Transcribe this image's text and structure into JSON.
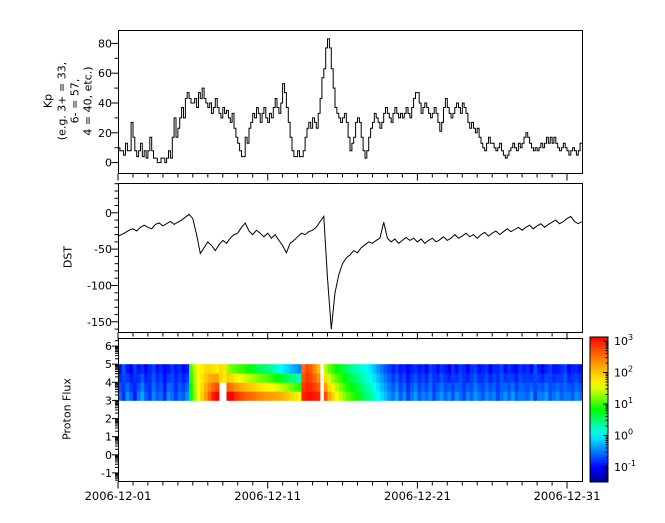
{
  "figure": {
    "background": "#ffffff",
    "border_color": "#000000",
    "line_color": "#000000"
  },
  "x_axis": {
    "tick_labels": [
      {
        "day": 0,
        "label": "2006-12-01"
      },
      {
        "day": 10,
        "label": "2006-12-11"
      },
      {
        "day": 20,
        "label": "2006-12-21"
      },
      {
        "day": 30,
        "label": "2006-12-31"
      }
    ],
    "minor_day_step": 1,
    "span_days": 31
  },
  "colorbar": {
    "base": "10",
    "tick_exponents": [
      3,
      2,
      1,
      0,
      -1
    ],
    "log10_domain": [
      -1.48,
      3.13
    ],
    "colormap_stops": [
      {
        "t": 0.0,
        "color": "#000090"
      },
      {
        "t": 0.1,
        "color": "#0000ff"
      },
      {
        "t": 0.33,
        "color": "#00ffff"
      },
      {
        "t": 0.5,
        "color": "#00ff00"
      },
      {
        "t": 0.67,
        "color": "#ffff00"
      },
      {
        "t": 0.85,
        "color": "#ff8000"
      },
      {
        "t": 1.0,
        "color": "#ff0000"
      }
    ]
  },
  "chart_data": [
    {
      "type": "line",
      "style": "step",
      "ylabel": "Kp (e.g. 3+ = 33, 6- = 57, 4 = 40, etc.)",
      "ylabel_lines": [
        "Kp",
        "(e.g. 3+ = 33,",
        "6- = 57,",
        "4 = 40, etc.)"
      ],
      "x_start": "2006-12-01",
      "interval_hours": 3,
      "yticks": [
        80,
        60,
        40,
        20,
        0
      ],
      "ytick_minor_step": 10,
      "ylim": [
        -7,
        89
      ],
      "values": [
        10,
        8,
        8,
        5,
        13,
        8,
        8,
        27,
        17,
        8,
        4,
        8,
        13,
        4,
        8,
        3,
        8,
        17,
        8,
        3,
        3,
        0,
        0,
        3,
        3,
        0,
        3,
        8,
        3,
        17,
        30,
        17,
        23,
        30,
        37,
        30,
        43,
        47,
        43,
        40,
        40,
        43,
        37,
        47,
        43,
        50,
        43,
        40,
        37,
        40,
        33,
        37,
        43,
        37,
        33,
        30,
        37,
        33,
        35,
        30,
        27,
        33,
        23,
        17,
        13,
        8,
        4,
        4,
        17,
        13,
        23,
        27,
        33,
        30,
        37,
        33,
        27,
        33,
        37,
        30,
        27,
        33,
        30,
        37,
        43,
        37,
        33,
        40,
        53,
        47,
        37,
        27,
        17,
        8,
        4,
        4,
        8,
        4,
        4,
        8,
        17,
        23,
        27,
        23,
        30,
        27,
        23,
        33,
        43,
        57,
        63,
        77,
        83,
        77,
        63,
        50,
        37,
        33,
        30,
        27,
        30,
        33,
        27,
        17,
        8,
        13,
        17,
        27,
        30,
        27,
        17,
        8,
        3,
        8,
        17,
        23,
        27,
        33,
        30,
        27,
        23,
        27,
        33,
        37,
        33,
        30,
        27,
        33,
        37,
        33,
        30,
        33,
        30,
        33,
        37,
        33,
        30,
        37,
        43,
        47,
        47,
        40,
        33,
        37,
        40,
        37,
        33,
        30,
        33,
        37,
        33,
        27,
        21,
        27,
        37,
        43,
        37,
        33,
        30,
        33,
        37,
        40,
        37,
        33,
        40,
        37,
        33,
        27,
        23,
        27,
        23,
        20,
        23,
        17,
        13,
        10,
        8,
        13,
        17,
        13,
        13,
        10,
        8,
        10,
        13,
        8,
        5,
        3,
        5,
        8,
        10,
        13,
        10,
        8,
        13,
        10,
        13,
        17,
        20,
        17,
        13,
        10,
        8,
        10,
        8,
        10,
        13,
        10,
        13,
        17,
        13,
        17,
        13,
        17,
        13,
        10,
        8,
        10,
        13,
        10,
        8,
        5,
        8,
        10,
        8,
        5,
        8,
        13
      ]
    },
    {
      "type": "line",
      "style": "line",
      "ylabel": "DST",
      "ylabel_lines": [
        "DST"
      ],
      "x_start": "2006-12-01",
      "interval_hours": 6,
      "yticks": [
        0,
        -50,
        -100,
        -150
      ],
      "ytick_minor_step": 10,
      "ylim": [
        -164,
        41
      ],
      "values": [
        -32,
        -30,
        -27,
        -24,
        -22,
        -25,
        -20,
        -17,
        -20,
        -22,
        -16,
        -14,
        -18,
        -15,
        -12,
        -16,
        -13,
        -10,
        -6,
        -2,
        -8,
        -30,
        -56,
        -48,
        -40,
        -45,
        -52,
        -44,
        -38,
        -42,
        -35,
        -30,
        -28,
        -20,
        -14,
        -25,
        -30,
        -24,
        -28,
        -33,
        -28,
        -35,
        -30,
        -38,
        -45,
        -55,
        -42,
        -38,
        -33,
        -28,
        -30,
        -26,
        -24,
        -20,
        -12,
        -5,
        -90,
        -160,
        -110,
        -85,
        -70,
        -62,
        -58,
        -52,
        -55,
        -48,
        -44,
        -40,
        -42,
        -38,
        -35,
        -13,
        -35,
        -40,
        -36,
        -42,
        -38,
        -34,
        -38,
        -35,
        -40,
        -36,
        -42,
        -38,
        -35,
        -40,
        -37,
        -33,
        -38,
        -35,
        -30,
        -35,
        -32,
        -28,
        -33,
        -30,
        -35,
        -30,
        -27,
        -32,
        -28,
        -25,
        -30,
        -26,
        -22,
        -26,
        -23,
        -20,
        -24,
        -20,
        -17,
        -22,
        -18,
        -15,
        -20,
        -16,
        -13,
        -10,
        -15,
        -12,
        -8,
        -5,
        -12,
        -15,
        -12
      ]
    },
    {
      "type": "heatmap",
      "ylabel": "Proton Flux",
      "ylabel_lines": [
        "Proton Flux"
      ],
      "x_start": "2006-12-01",
      "interval_hours": 6,
      "yticks": [
        6,
        5,
        4,
        3,
        2,
        1,
        0,
        -1
      ],
      "ylim": [
        -1.45,
        6.45
      ],
      "y_scale": "log-exponent",
      "band_y_range": [
        3,
        5
      ],
      "missing_value": null,
      "color_scale": {
        "type": "log",
        "min_exp": -1,
        "max_exp": 3,
        "colormap": "jet"
      },
      "bands": [
        {
          "y_range": [
            4,
            5
          ],
          "log10_flux": [
            -0.9,
            -0.7,
            -0.85,
            -1.0,
            -0.8,
            -0.9,
            -0.75,
            -0.95,
            -0.85,
            -0.7,
            -0.9,
            -0.8,
            -1.0,
            -0.85,
            -0.75,
            -0.9,
            -0.8,
            -0.95,
            -0.85,
            1.0,
            1.4,
            1.6,
            1.75,
            1.9,
            2.0,
            2.0,
            1.95,
            1.85,
            1.75,
            1.6,
            1.5,
            1.4,
            1.3,
            1.25,
            1.15,
            1.05,
            1.0,
            0.9,
            0.85,
            0.8,
            0.7,
            0.6,
            0.5,
            0.4,
            0.3,
            0.2,
            0.1,
            0.0,
            -0.1,
            2.6,
            2.8,
            2.7,
            2.5,
            2.2,
            null,
            1.6,
            1.3,
            1.1,
            0.95,
            0.85,
            0.7,
            0.6,
            0.5,
            0.4,
            0.3,
            0.2,
            0.1,
            0.0,
            -0.15,
            -0.3,
            -0.45,
            -0.6,
            -0.7,
            -0.85,
            -0.7,
            -0.9,
            -0.8,
            -1.0,
            -0.85,
            -0.75,
            -0.9,
            -0.8,
            -0.95,
            -0.7,
            -0.85,
            -0.9,
            -0.75,
            -0.85,
            -1.0,
            -0.8,
            -0.9,
            -0.75,
            -0.85,
            -0.95,
            -0.8,
            -0.7,
            -0.9,
            -0.85,
            -0.75,
            -0.95,
            -0.8,
            -0.85,
            -0.7,
            -0.9,
            -0.8,
            -0.85,
            -0.95,
            -0.75,
            -0.85,
            -0.8,
            -0.9,
            -0.7,
            -0.85,
            -0.95,
            -0.8,
            -0.75,
            -0.9,
            -0.85,
            -0.8,
            -0.7,
            -0.95,
            -0.85,
            -0.8,
            -0.9
          ]
        },
        {
          "y_range": [
            3,
            4
          ],
          "log10_flux": [
            -0.6,
            -0.8,
            -0.5,
            -0.7,
            -0.9,
            -0.6,
            -0.4,
            -0.7,
            -0.8,
            -0.5,
            -0.7,
            -0.6,
            -0.9,
            -0.5,
            -0.6,
            -0.8,
            -0.6,
            -0.7,
            -0.5,
            0.8,
            1.3,
            1.6,
            1.9,
            2.2,
            2.5,
            2.8,
            3.0,
            null,
            null,
            2.9,
            2.8,
            2.6,
            2.5,
            2.4,
            2.3,
            2.25,
            2.2,
            2.1,
            2.05,
            2.0,
            1.95,
            1.9,
            1.85,
            1.8,
            1.7,
            1.6,
            1.5,
            1.4,
            1.3,
            2.9,
            3.0,
            3.0,
            2.9,
            2.8,
            null,
            2.5,
            2.0,
            1.7,
            1.5,
            1.3,
            1.15,
            1.0,
            0.9,
            0.8,
            0.65,
            0.5,
            0.4,
            0.3,
            0.15,
            0.0,
            -0.15,
            -0.3,
            -0.45,
            -0.6,
            -0.4,
            -0.7,
            -0.5,
            -0.8,
            -0.6,
            -0.45,
            -0.7,
            -0.55,
            -0.65,
            -0.5,
            -0.75,
            -0.6,
            -0.45,
            -0.65,
            -0.55,
            -0.7,
            -0.5,
            -0.6,
            -0.75,
            -0.55,
            -0.65,
            -0.45,
            -0.6,
            -0.7,
            -0.5,
            -0.65,
            -0.55,
            -0.75,
            -0.6,
            -0.5,
            -0.65,
            -0.45,
            -0.7,
            -0.55,
            -0.6,
            -0.65,
            -0.5,
            -0.75,
            -0.55,
            -0.6,
            -0.45,
            -0.7,
            -0.6,
            -0.5,
            -0.65,
            -0.55,
            -0.6,
            -0.7,
            -0.5,
            -0.6
          ]
        }
      ]
    }
  ]
}
